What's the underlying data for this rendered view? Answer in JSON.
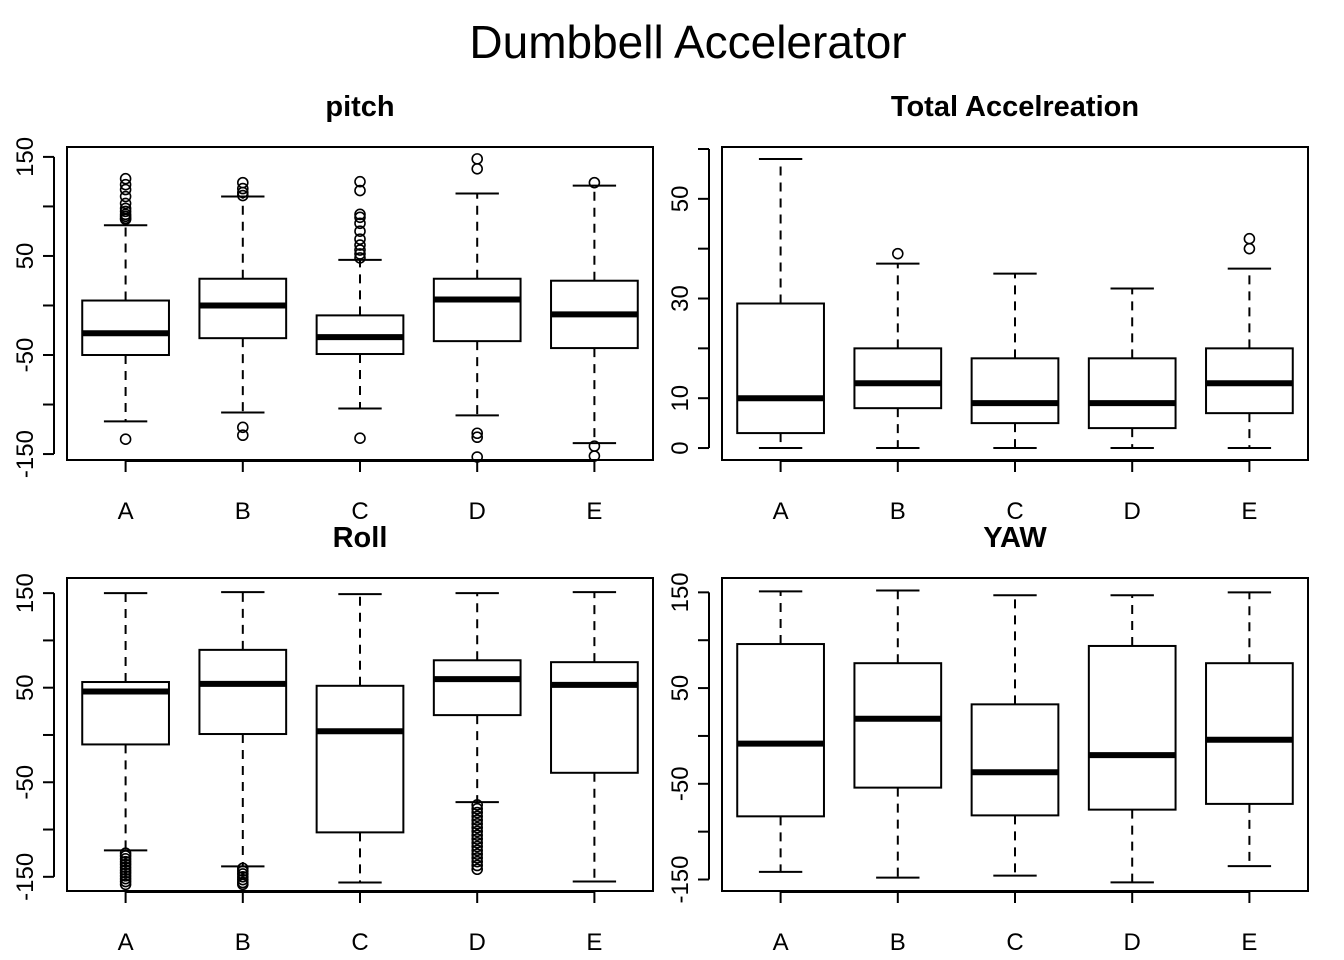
{
  "figure": {
    "title": "Dumbbell Accelerator"
  },
  "chart_data": [
    {
      "type": "boxplot",
      "title": "pitch",
      "xlabel": "",
      "ylabel": "",
      "categories": [
        "A",
        "B",
        "C",
        "D",
        "E"
      ],
      "yticks": [
        -150,
        -100,
        -50,
        0,
        50,
        100,
        150
      ],
      "ytick_labels": [
        "-150",
        "",
        "-50",
        "",
        "50",
        "",
        "150"
      ],
      "ylim": [
        -156,
        160
      ],
      "grid": false,
      "boxes": [
        {
          "category": "A",
          "whisker_low": -117,
          "q1": -50,
          "median": -28,
          "q3": 5,
          "whisker_high": 81,
          "outliers": [
            87,
            88,
            90,
            92,
            95,
            98,
            103,
            110,
            117,
            122,
            128,
            -135
          ]
        },
        {
          "category": "B",
          "whisker_low": -108,
          "q1": -33,
          "median": 0,
          "q3": 27,
          "whisker_high": 110,
          "outliers": [
            111,
            114,
            118,
            124,
            -123,
            -131
          ]
        },
        {
          "category": "C",
          "whisker_low": -104,
          "q1": -49,
          "median": -32,
          "q3": -10,
          "whisker_high": 46,
          "outliers": [
            48,
            52,
            56,
            61,
            67,
            75,
            83,
            89,
            92,
            125,
            116,
            -134
          ]
        },
        {
          "category": "D",
          "whisker_low": -111,
          "q1": -36,
          "median": 6,
          "q3": 27,
          "whisker_high": 113,
          "outliers": [
            138,
            148,
            -129,
            -133,
            -153
          ]
        },
        {
          "category": "E",
          "whisker_low": -139,
          "q1": -43,
          "median": -9,
          "q3": 25,
          "whisker_high": 121,
          "outliers": [
            124,
            -142,
            -152
          ]
        }
      ]
    },
    {
      "type": "boxplot",
      "title": "Total Accelreation",
      "xlabel": "",
      "ylabel": "",
      "categories": [
        "A",
        "B",
        "C",
        "D",
        "E"
      ],
      "yticks": [
        0,
        10,
        20,
        30,
        40,
        50,
        60
      ],
      "ytick_labels": [
        "0",
        "10",
        "",
        "30",
        "",
        "50",
        ""
      ],
      "ylim": [
        -2.4,
        60.4
      ],
      "grid": false,
      "boxes": [
        {
          "category": "A",
          "whisker_low": 0,
          "q1": 3,
          "median": 10,
          "q3": 29,
          "whisker_high": 58,
          "outliers": []
        },
        {
          "category": "B",
          "whisker_low": 0,
          "q1": 8,
          "median": 13,
          "q3": 20,
          "whisker_high": 37,
          "outliers": [
            39
          ]
        },
        {
          "category": "C",
          "whisker_low": 0,
          "q1": 5,
          "median": 9,
          "q3": 18,
          "whisker_high": 35,
          "outliers": []
        },
        {
          "category": "D",
          "whisker_low": 0,
          "q1": 4,
          "median": 9,
          "q3": 18,
          "whisker_high": 32,
          "outliers": []
        },
        {
          "category": "E",
          "whisker_low": 0,
          "q1": 7,
          "median": 13,
          "q3": 20,
          "whisker_high": 36,
          "outliers": [
            40,
            42
          ]
        }
      ]
    },
    {
      "type": "boxplot",
      "title": "Roll",
      "xlabel": "",
      "ylabel": "",
      "categories": [
        "A",
        "B",
        "C",
        "D",
        "E"
      ],
      "yticks": [
        -150,
        -100,
        -50,
        0,
        50,
        100,
        150
      ],
      "ytick_labels": [
        "-150",
        "",
        "-50",
        "",
        "50",
        "",
        "150"
      ],
      "ylim": [
        -165,
        166
      ],
      "grid": false,
      "boxes": [
        {
          "category": "A",
          "whisker_low": -122,
          "q1": -10,
          "median": 46,
          "q3": 56,
          "whisker_high": 150,
          "outliers": [
            -125,
            -128,
            -131,
            -134,
            -137,
            -140,
            -143,
            -146,
            -149,
            -152,
            -155,
            -158
          ]
        },
        {
          "category": "B",
          "whisker_low": -139,
          "q1": 1,
          "median": 54,
          "q3": 90,
          "whisker_high": 151,
          "outliers": [
            -141,
            -144,
            -147,
            -150,
            -153,
            -156,
            -158
          ]
        },
        {
          "category": "C",
          "whisker_low": -156,
          "q1": -103,
          "median": 4,
          "q3": 52,
          "whisker_high": 149,
          "outliers": []
        },
        {
          "category": "D",
          "whisker_low": -71,
          "q1": 21,
          "median": 59,
          "q3": 79,
          "whisker_high": 150,
          "outliers": [
            -74,
            -78,
            -82,
            -86,
            -90,
            -94,
            -98,
            -102,
            -106,
            -110,
            -114,
            -118,
            -122,
            -126,
            -130,
            -134,
            -138,
            -142
          ]
        },
        {
          "category": "E",
          "whisker_low": -155,
          "q1": -40,
          "median": 53,
          "q3": 77,
          "whisker_high": 151,
          "outliers": []
        }
      ]
    },
    {
      "type": "boxplot",
      "title": "YAW",
      "xlabel": "",
      "ylabel": "",
      "categories": [
        "A",
        "B",
        "C",
        "D",
        "E"
      ],
      "yticks": [
        -150,
        -100,
        -50,
        0,
        50,
        100,
        150
      ],
      "ytick_labels": [
        "-150",
        "",
        "-50",
        "",
        "50",
        "",
        "150"
      ],
      "ylim": [
        -162,
        165
      ],
      "grid": false,
      "boxes": [
        {
          "category": "A",
          "whisker_low": -142,
          "q1": -84,
          "median": -8,
          "q3": 96,
          "whisker_high": 151,
          "outliers": []
        },
        {
          "category": "B",
          "whisker_low": -148,
          "q1": -54,
          "median": 18,
          "q3": 76,
          "whisker_high": 152,
          "outliers": []
        },
        {
          "category": "C",
          "whisker_low": -146,
          "q1": -83,
          "median": -38,
          "q3": 33,
          "whisker_high": 147,
          "outliers": []
        },
        {
          "category": "D",
          "whisker_low": -153,
          "q1": -77,
          "median": -20,
          "q3": 94,
          "whisker_high": 147,
          "outliers": []
        },
        {
          "category": "E",
          "whisker_low": -136,
          "q1": -71,
          "median": -4,
          "q3": 76,
          "whisker_high": 150,
          "outliers": []
        }
      ]
    }
  ]
}
